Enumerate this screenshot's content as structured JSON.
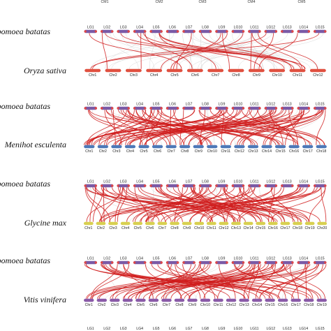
{
  "colors": {
    "ipomoea_bar": "#7a5aa6",
    "ipomoea_end": "#e04848",
    "oryza_bar": "#e05040",
    "manihot_bar": "#4e79b8",
    "glycine_bar": "#d8d050",
    "vitis_bar": "#8a5aa8",
    "link_red": "#d01c1c",
    "link_grey": "#c8c8c8"
  },
  "top_labels": [
    "CM1",
    "CM2",
    "CM3",
    "CM4",
    "CM5"
  ],
  "panels": [
    {
      "top_species": "Ipomoea batatas",
      "top_chromosomes": [
        "LG1",
        "LG2",
        "LG3",
        "LG4",
        "LG5",
        "LG6",
        "LG7",
        "LG8",
        "LG9",
        "LG10",
        "LG11",
        "LG12",
        "LG13",
        "LG14",
        "LG15"
      ],
      "bottom_species": "Oryza sativa",
      "bottom_chromosomes": [
        "Chr1",
        "Chr2",
        "Chr3",
        "Chr4",
        "Chr5",
        "Chr6",
        "Chr7",
        "Chr8",
        "Chr9",
        "Chr10",
        "Chr11",
        "Chr12"
      ]
    },
    {
      "top_species": "Ipomoea batatas",
      "top_chromosomes": [
        "LG1",
        "LG2",
        "LG3",
        "LG4",
        "LG5",
        "LG6",
        "LG7",
        "LG8",
        "LG9",
        "LG10",
        "LG11",
        "LG12",
        "LG13",
        "LG14",
        "LG15"
      ],
      "bottom_species": "Menihot esculenta",
      "bottom_chromosomes": [
        "Chr1",
        "Chr2",
        "Chr3",
        "Chr4",
        "Chr5",
        "Chr6",
        "Chr7",
        "Chr8",
        "Chr9",
        "Chr10",
        "Chr11",
        "Chr12",
        "Chr13",
        "Chr14",
        "Chr15",
        "Chr16",
        "Chr17",
        "Chr18"
      ]
    },
    {
      "top_species": "Ipomoea batatas",
      "top_chromosomes": [
        "LG1",
        "LG2",
        "LG3",
        "LG4",
        "LG5",
        "LG6",
        "LG7",
        "LG8",
        "LG9",
        "LG10",
        "LG11",
        "LG12",
        "LG13",
        "LG14",
        "LG15"
      ],
      "bottom_species": "Glycine max",
      "bottom_chromosomes": [
        "Chr1",
        "Chr2",
        "Chr3",
        "Chr4",
        "Chr5",
        "Chr6",
        "Chr7",
        "Chr8",
        "Chr9",
        "Chr10",
        "Chr11",
        "Chr12",
        "Chr13",
        "Chr14",
        "Chr15",
        "Chr16",
        "Chr17",
        "Chr18",
        "Chr19",
        "Chr20"
      ]
    },
    {
      "top_species": "Ipomoea batatas",
      "top_chromosomes": [
        "LG1",
        "LG2",
        "LG3",
        "LG4",
        "LG5",
        "LG6",
        "LG7",
        "LG8",
        "LG9",
        "LG10",
        "LG11",
        "LG12",
        "LG13",
        "LG14",
        "LG15"
      ],
      "bottom_species": "Vitis vinifera",
      "bottom_chromosomes": [
        "Chr1",
        "Chr2",
        "Chr3",
        "Chr4",
        "Chr5",
        "Chr6",
        "Chr7",
        "Chr8",
        "Chr9",
        "Chr10",
        "Chr11",
        "Chr12",
        "Chr13",
        "Chr14",
        "Chr15",
        "Chr16",
        "Chr17",
        "Chr18",
        "Chr19"
      ]
    }
  ],
  "partial_bottom_chromosomes": [
    "LG1",
    "LG2",
    "LG3",
    "LG4",
    "LG5",
    "LG6",
    "LG7",
    "LG8",
    "LG9",
    "LG10",
    "LG11",
    "LG12",
    "LG13",
    "LG14",
    "LG15"
  ]
}
